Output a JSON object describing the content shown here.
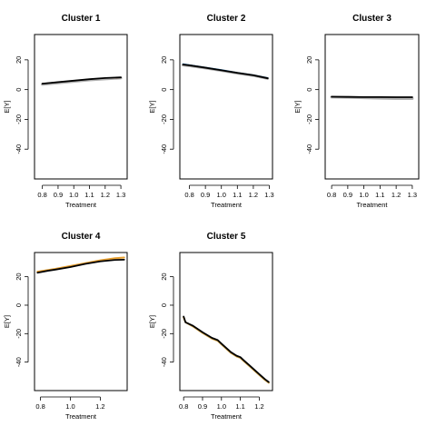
{
  "chart_data": [
    {
      "type": "line",
      "title": "Cluster 1",
      "xlabel": "Treatment",
      "ylabel": "E[Y]",
      "xlim": [
        0.75,
        1.34
      ],
      "ylim": [
        -60,
        37
      ],
      "xticks": [
        0.8,
        0.9,
        1.0,
        1.1,
        1.2,
        1.3
      ],
      "xtick_labels": [
        "0.8",
        "0.9",
        "1.0",
        "1.1",
        "1.2",
        "1.3"
      ],
      "yticks": [
        -40,
        -20,
        0,
        20
      ],
      "ytick_labels": [
        "-40",
        "-20",
        "0",
        "20"
      ],
      "series": [
        {
          "color": "#b0b0b0",
          "width": 3,
          "x": [
            0.8,
            0.9,
            1.0,
            1.1,
            1.2,
            1.3
          ],
          "values": [
            3.5,
            4.5,
            5.5,
            6.5,
            7.2,
            7.8
          ]
        },
        {
          "color": "#e07020",
          "width": 1,
          "x": [
            0.8,
            0.9,
            1.0,
            1.1,
            1.2,
            1.3
          ],
          "values": [
            4.1,
            5.0,
            6.0,
            7.0,
            7.7,
            8.0
          ]
        },
        {
          "color": "#000000",
          "width": 1.8,
          "x": [
            0.8,
            0.9,
            1.0,
            1.1,
            1.2,
            1.3
          ],
          "values": [
            4.0,
            5.0,
            6.0,
            7.0,
            7.8,
            8.2
          ]
        }
      ]
    },
    {
      "type": "line",
      "title": "Cluster 2",
      "xlabel": "Treatment",
      "ylabel": "E[Y]",
      "xlim": [
        0.74,
        1.32
      ],
      "ylim": [
        -60,
        37
      ],
      "xticks": [
        0.8,
        0.9,
        1.0,
        1.1,
        1.2,
        1.3
      ],
      "xtick_labels": [
        "0.8",
        "0.9",
        "1.0",
        "1.1",
        "1.2",
        "1.3"
      ],
      "yticks": [
        -40,
        -20,
        0,
        20
      ],
      "ytick_labels": [
        "-40",
        "-20",
        "0",
        "20"
      ],
      "series": [
        {
          "color": "#b0b0b0",
          "width": 3,
          "x": [
            0.76,
            0.8,
            0.9,
            1.0,
            1.1,
            1.2,
            1.29
          ],
          "values": [
            16.5,
            16.0,
            14.5,
            12.8,
            11.0,
            9.5,
            7.5
          ]
        },
        {
          "color": "#1a6fb0",
          "width": 1.5,
          "x": [
            0.76,
            0.8,
            0.9,
            1.0,
            1.1,
            1.2,
            1.29
          ],
          "values": [
            17.2,
            16.5,
            14.8,
            13.2,
            11.3,
            9.7,
            7.8
          ]
        },
        {
          "color": "#000000",
          "width": 1.8,
          "x": [
            0.76,
            0.8,
            0.9,
            1.0,
            1.1,
            1.2,
            1.29
          ],
          "values": [
            16.8,
            16.3,
            14.7,
            13.0,
            11.2,
            9.6,
            7.6
          ]
        }
      ]
    },
    {
      "type": "line",
      "title": "Cluster 3",
      "xlabel": "Treatment",
      "ylabel": "E[Y]",
      "xlim": [
        0.76,
        1.34
      ],
      "ylim": [
        -60,
        37
      ],
      "xticks": [
        0.8,
        0.9,
        1.0,
        1.1,
        1.2,
        1.3
      ],
      "xtick_labels": [
        "0.8",
        "0.9",
        "1.0",
        "1.1",
        "1.2",
        "1.3"
      ],
      "yticks": [
        -40,
        -20,
        0,
        20
      ],
      "ytick_labels": [
        "-40",
        "-20",
        "0",
        "20"
      ],
      "series": [
        {
          "color": "#b0b0b0",
          "width": 3,
          "x": [
            0.8,
            0.9,
            1.0,
            1.1,
            1.2,
            1.3
          ],
          "values": [
            -5.0,
            -5.2,
            -5.5,
            -5.8,
            -6.0,
            -6.0
          ]
        },
        {
          "color": "#000000",
          "width": 1.8,
          "x": [
            0.8,
            0.9,
            1.0,
            1.1,
            1.2,
            1.3
          ],
          "values": [
            -4.8,
            -4.9,
            -5.0,
            -5.0,
            -5.1,
            -5.1
          ]
        }
      ]
    },
    {
      "type": "line",
      "title": "Cluster 4",
      "xlabel": "Treatment",
      "ylabel": "E[Y]",
      "xlim": [
        0.76,
        1.38
      ],
      "ylim": [
        -60,
        37
      ],
      "xticks": [
        0.8,
        1.0,
        1.2
      ],
      "xtick_labels": [
        "0.8",
        "1.0",
        "1.2"
      ],
      "yticks": [
        -40,
        -20,
        0,
        20
      ],
      "ytick_labels": [
        "-40",
        "-20",
        "0",
        "20"
      ],
      "series": [
        {
          "color": "#e8a030",
          "width": 2,
          "x": [
            0.78,
            0.9,
            1.0,
            1.1,
            1.2,
            1.3,
            1.36
          ],
          "values": [
            23.5,
            25.5,
            27.5,
            29.5,
            31.5,
            33.0,
            33.5
          ]
        },
        {
          "color": "#000000",
          "width": 1.8,
          "x": [
            0.78,
            0.85,
            0.9,
            1.0,
            1.1,
            1.2,
            1.3,
            1.36
          ],
          "values": [
            22.8,
            24.2,
            25.0,
            26.8,
            29.0,
            30.8,
            31.8,
            32.0
          ]
        }
      ]
    },
    {
      "type": "line",
      "title": "Cluster 5",
      "xlabel": "Treatment",
      "ylabel": "E[Y]",
      "xlim": [
        0.78,
        1.27
      ],
      "ylim": [
        -60,
        37
      ],
      "xticks": [
        0.8,
        0.9,
        1.0,
        1.1,
        1.2
      ],
      "xtick_labels": [
        "0.8",
        "0.9",
        "1.0",
        "1.1",
        "1.2"
      ],
      "yticks": [
        -40,
        -20,
        0,
        20
      ],
      "ytick_labels": [
        "-40",
        "-20",
        "0",
        "20"
      ],
      "series": [
        {
          "color": "#d0a040",
          "width": 2,
          "x": [
            0.8,
            0.81,
            0.85,
            0.9,
            0.95,
            0.98,
            1.0,
            1.05,
            1.08,
            1.1,
            1.12,
            1.15,
            1.2,
            1.23,
            1.25
          ],
          "values": [
            -8.5,
            -12.0,
            -15.0,
            -19.5,
            -23.5,
            -25.0,
            -27.5,
            -33.5,
            -36.0,
            -37.0,
            -39.5,
            -43.0,
            -49.0,
            -52.5,
            -54.5
          ]
        },
        {
          "color": "#000000",
          "width": 1.8,
          "x": [
            0.8,
            0.81,
            0.85,
            0.9,
            0.95,
            0.98,
            1.0,
            1.05,
            1.08,
            1.1,
            1.12,
            1.15,
            1.2,
            1.23,
            1.25
          ],
          "values": [
            -8.0,
            -12.0,
            -14.5,
            -19.0,
            -23.0,
            -24.5,
            -27.0,
            -33.0,
            -35.5,
            -36.5,
            -39.0,
            -42.5,
            -48.5,
            -52.0,
            -54.0
          ]
        }
      ]
    }
  ]
}
